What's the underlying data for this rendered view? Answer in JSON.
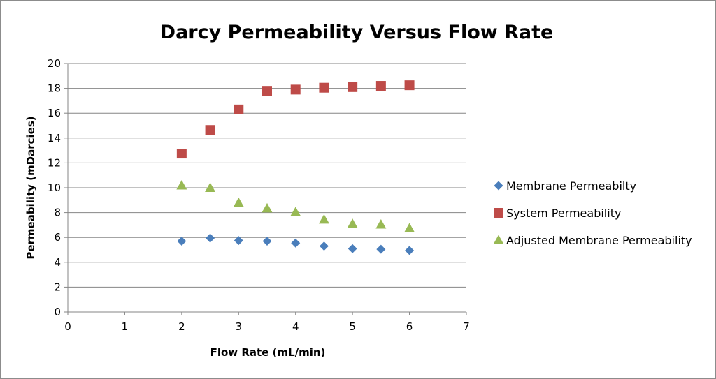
{
  "chart_data": {
    "type": "scatter",
    "title": "Darcy Permeability Versus Flow Rate",
    "xlabel": "Flow Rate (mL/min)",
    "ylabel": "Permeability (mDarcies)",
    "xlim": [
      0,
      7
    ],
    "ylim": [
      0,
      20
    ],
    "x_ticks": [
      "0",
      "1",
      "2",
      "3",
      "4",
      "5",
      "6",
      "7"
    ],
    "y_ticks": [
      "0",
      "2",
      "4",
      "6",
      "8",
      "10",
      "12",
      "14",
      "16",
      "18",
      "20"
    ],
    "grid": "horizontal",
    "legend_position": "right",
    "series": [
      {
        "name": "Membrane Permeabilty",
        "marker": "diamond",
        "color": "#4a7ebb",
        "x": [
          2,
          2.5,
          3,
          3.5,
          4,
          4.5,
          5,
          5.5,
          6
        ],
        "y": [
          5.7,
          5.95,
          5.75,
          5.7,
          5.55,
          5.3,
          5.1,
          5.05,
          4.95
        ]
      },
      {
        "name": "System Permeability",
        "marker": "square",
        "color": "#be4b48",
        "x": [
          2,
          2.5,
          3,
          3.5,
          4,
          4.5,
          5,
          5.5,
          6
        ],
        "y": [
          12.75,
          14.65,
          16.3,
          17.8,
          17.9,
          18.05,
          18.1,
          18.2,
          18.25
        ]
      },
      {
        "name": "Adjusted Membrane Permeability",
        "marker": "triangle",
        "color": "#98b954",
        "x": [
          2,
          2.5,
          3,
          3.5,
          4,
          4.5,
          5,
          5.5,
          6
        ],
        "y": [
          10.2,
          10.0,
          8.8,
          8.35,
          8.05,
          7.45,
          7.1,
          7.05,
          6.75
        ]
      }
    ]
  }
}
